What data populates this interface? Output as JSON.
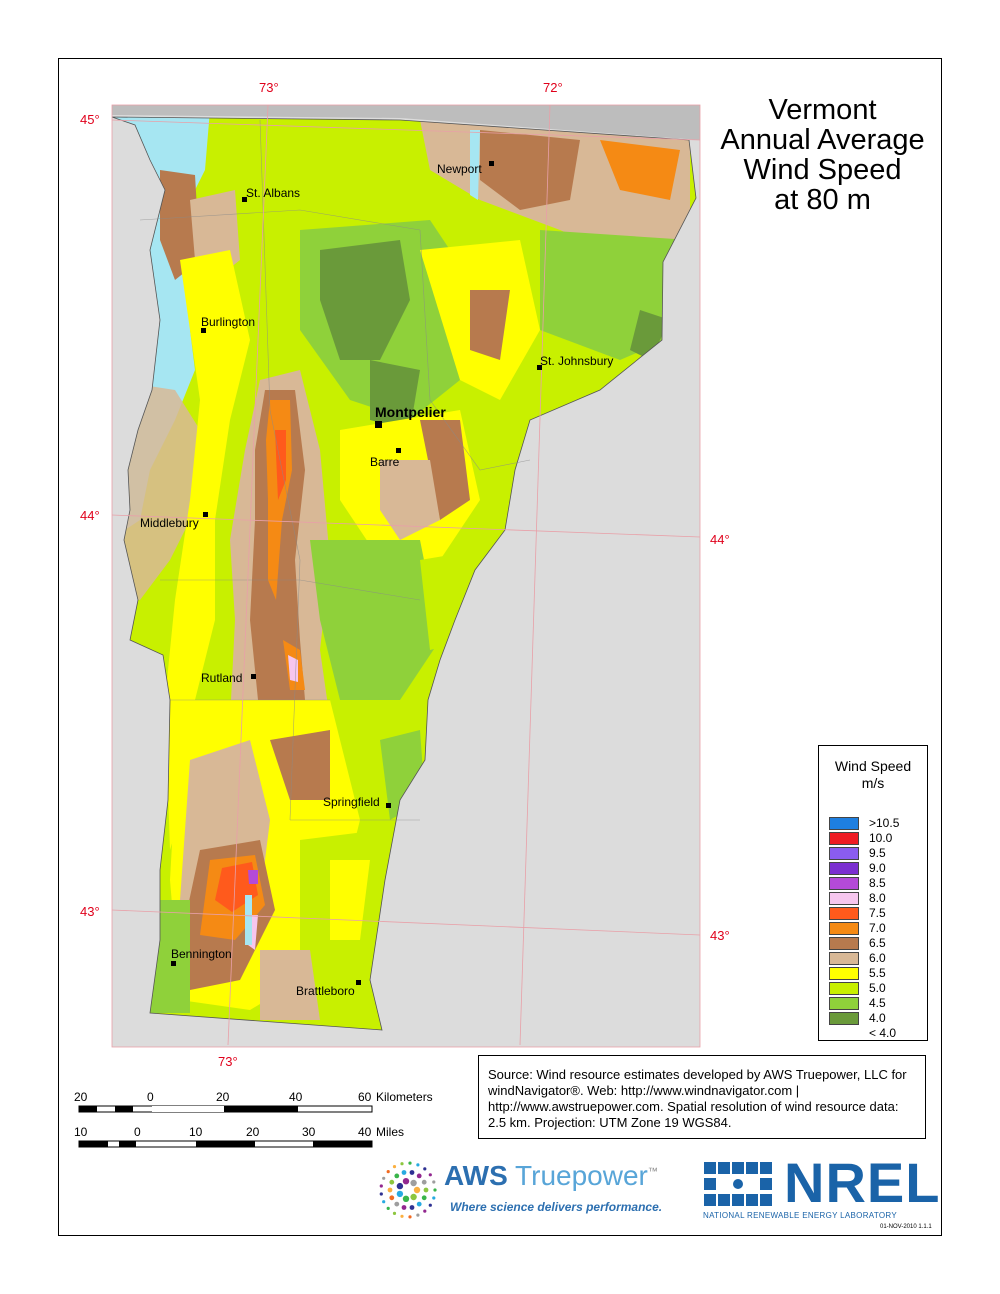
{
  "title": {
    "line1": "Vermont",
    "line2": "Annual Average",
    "line3": "Wind Speed",
    "line4": "at 80 m"
  },
  "graticule": {
    "lon_top_73": "73°",
    "lon_top_72": "72°",
    "lon_bottom_73": "73°",
    "lat_45": "45°",
    "lat_44_left": "44°",
    "lat_44_right": "44°",
    "lat_43_left": "43°",
    "lat_43_right": "43°"
  },
  "cities": {
    "newport": "Newport",
    "st_albans": "St. Albans",
    "burlington": "Burlington",
    "st_johnsbury": "St. Johnsbury",
    "montpelier": "Montpelier",
    "barre": "Barre",
    "middlebury": "Middlebury",
    "rutland": "Rutland",
    "springfield": "Springfield",
    "bennington": "Bennington",
    "brattleboro": "Brattleboro"
  },
  "legend": {
    "title_line1": "Wind Speed",
    "title_line2": "m/s",
    "items": [
      {
        "label": ">10.5",
        "color": "#1e7fe0"
      },
      {
        "label": "10.0",
        "color": "#ee1c24"
      },
      {
        "label": "9.5",
        "color": "#8a5cf0"
      },
      {
        "label": "9.0",
        "color": "#7b2fd0"
      },
      {
        "label": "8.5",
        "color": "#b44ad8"
      },
      {
        "label": "8.0",
        "color": "#f6c6ee"
      },
      {
        "label": "7.5",
        "color": "#ff5a1c"
      },
      {
        "label": "7.0",
        "color": "#f58a14"
      },
      {
        "label": "6.5",
        "color": "#b77a4e"
      },
      {
        "label": "6.0",
        "color": "#d8b896"
      },
      {
        "label": "5.5",
        "color": "#ffff00"
      },
      {
        "label": "5.0",
        "color": "#c8f000"
      },
      {
        "label": "4.5",
        "color": "#8fd13a"
      },
      {
        "label": "4.0",
        "color": "#6a9a3a"
      },
      {
        "label": "< 4.0",
        "color": ""
      }
    ]
  },
  "source_text": "Source: Wind resource estimates developed by AWS Truepower, LLC for windNavigator®. Web: http://www.windnavigator.com | http://www.awstruepower.com. Spatial resolution of wind resource data: 2.5 km. Projection: UTM Zone 19 WGS84.",
  "scale": {
    "km_labels": [
      "20",
      "0",
      "20",
      "40",
      "60"
    ],
    "km_unit": "Kilometers",
    "mi_labels": [
      "10",
      "0",
      "10",
      "20",
      "30",
      "40"
    ],
    "mi_unit": "Miles"
  },
  "logos": {
    "aws_name_bold": "AWS",
    "aws_name_rest": " Truepower",
    "aws_tm": "™",
    "aws_tagline": "Where science delivers performance.",
    "nrel_word": "NREL",
    "nrel_sub": "NATIONAL RENEWABLE ENERGY LABORATORY"
  },
  "datestamp": "01-NOV-2010 1.1.1",
  "colors": {
    "water": "#a6e6f2",
    "outside": "#dcdcdc",
    "graticule": "#e0001b"
  }
}
